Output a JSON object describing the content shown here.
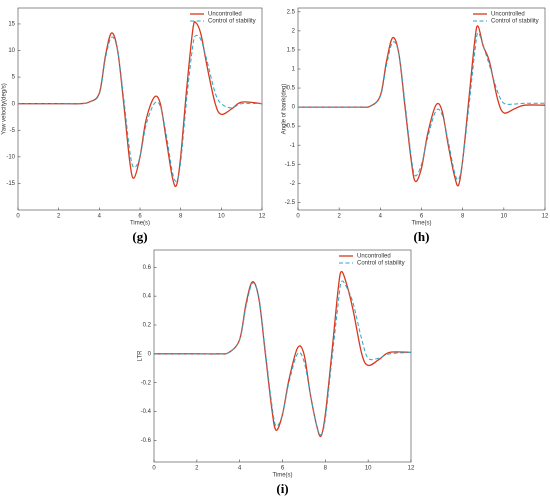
{
  "chart_data": [
    {
      "type": "line",
      "caption": "(g)",
      "xlabel": "Time(s)",
      "ylabel": "Yaw velocity(deg/s)",
      "x": [
        0,
        2,
        3,
        3.5,
        4,
        4.3,
        4.6,
        4.9,
        5.2,
        5.5,
        5.7,
        6,
        6.3,
        6.7,
        7,
        7.3,
        7.6,
        7.8,
        8,
        8.3,
        8.6,
        8.75,
        9,
        9.3,
        9.7,
        10,
        10.5,
        11,
        12
      ],
      "series": [
        {
          "name": "Uncontrolled",
          "color": "#d9381e",
          "dashed": false,
          "values": [
            0,
            0,
            0,
            0.3,
            2,
            9,
            13.3,
            10,
            0,
            -11,
            -14,
            -10,
            -3,
            1.2,
            0,
            -7,
            -14,
            -15.3,
            -10,
            3,
            14,
            15.2,
            13,
            7,
            0,
            -2,
            -1,
            0.3,
            0
          ]
        },
        {
          "name": "Control of stability",
          "color": "#2aa6c8",
          "dashed": true,
          "values": [
            0,
            0,
            0,
            0.3,
            1.8,
            8.5,
            12.5,
            10,
            1,
            -9,
            -12,
            -10,
            -4,
            0,
            -0.5,
            -6,
            -13,
            -14.5,
            -11,
            1,
            11,
            12.8,
            12,
            8,
            2,
            0,
            -0.8,
            0,
            0
          ]
        }
      ],
      "xlim": [
        0,
        12
      ],
      "xticks": [
        0,
        2,
        4,
        6,
        8,
        10,
        12
      ],
      "ylim": [
        -20,
        18
      ],
      "yticks": [
        -15,
        -10,
        -5,
        0,
        5,
        10,
        15
      ],
      "legend": "upper right"
    },
    {
      "type": "line",
      "caption": "(h)",
      "xlabel": "Time(s)",
      "ylabel": "Angle of bank(deg)",
      "x": [
        0,
        2,
        3,
        3.5,
        4,
        4.3,
        4.6,
        4.9,
        5.2,
        5.5,
        5.7,
        6,
        6.3,
        6.7,
        7,
        7.3,
        7.6,
        7.8,
        8,
        8.3,
        8.6,
        8.75,
        9,
        9.3,
        9.7,
        10,
        10.5,
        11,
        12
      ],
      "series": [
        {
          "name": "Uncontrolled",
          "color": "#d9381e",
          "dashed": false,
          "values": [
            0,
            0,
            0,
            0.02,
            0.3,
            1.2,
            1.82,
            1.4,
            0,
            -1.4,
            -1.95,
            -1.6,
            -0.7,
            0.05,
            -0.1,
            -1,
            -1.8,
            -2.05,
            -1.4,
            0.2,
            1.8,
            2.12,
            1.6,
            1.2,
            0.2,
            -0.15,
            -0.05,
            0.05,
            0.05
          ]
        },
        {
          "name": "Control of stability",
          "color": "#2aa6c8",
          "dashed": true,
          "values": [
            0,
            0,
            0,
            0.02,
            0.28,
            1.1,
            1.7,
            1.4,
            0.1,
            -1.3,
            -1.8,
            -1.5,
            -0.8,
            -0.1,
            -0.2,
            -0.9,
            -1.7,
            -1.9,
            -1.4,
            0,
            1.5,
            1.95,
            1.6,
            1.1,
            0.4,
            0.1,
            0.08,
            0.1,
            0.1
          ]
        }
      ],
      "xlim": [
        0,
        12
      ],
      "xticks": [
        0,
        2,
        4,
        6,
        8,
        10,
        12
      ],
      "ylim": [
        -2.7,
        2.6
      ],
      "yticks": [
        -2.5,
        -2,
        -1.5,
        -1,
        -0.5,
        0,
        0.5,
        1,
        1.5,
        2,
        2.5
      ],
      "legend": "upper right"
    },
    {
      "type": "line",
      "caption": "(i)",
      "xlabel": "Time(s)",
      "ylabel": "LTR",
      "x": [
        0,
        2,
        3,
        3.5,
        4,
        4.3,
        4.6,
        4.9,
        5.2,
        5.5,
        5.7,
        6,
        6.3,
        6.7,
        7,
        7.3,
        7.6,
        7.8,
        8,
        8.3,
        8.6,
        8.75,
        9,
        9.3,
        9.7,
        10,
        10.5,
        11,
        12
      ],
      "series": [
        {
          "name": "Uncontrolled",
          "color": "#d9381e",
          "dashed": false,
          "values": [
            0,
            0,
            0,
            0.01,
            0.1,
            0.35,
            0.5,
            0.38,
            0,
            -0.38,
            -0.53,
            -0.42,
            -0.18,
            0.04,
            0,
            -0.28,
            -0.5,
            -0.57,
            -0.42,
            0,
            0.45,
            0.57,
            0.48,
            0.3,
            0,
            -0.08,
            -0.04,
            0.01,
            0.01
          ]
        },
        {
          "name": "Control of stability",
          "color": "#2aa6c8",
          "dashed": true,
          "values": [
            0,
            0,
            0,
            0.01,
            0.1,
            0.33,
            0.49,
            0.39,
            0.02,
            -0.35,
            -0.5,
            -0.42,
            -0.2,
            0,
            -0.05,
            -0.28,
            -0.5,
            -0.56,
            -0.45,
            -0.05,
            0.35,
            0.5,
            0.46,
            0.35,
            0.1,
            -0.03,
            -0.03,
            0,
            0.01
          ]
        }
      ],
      "xlim": [
        0,
        12
      ],
      "xticks": [
        0,
        2,
        4,
        6,
        8,
        10,
        12
      ],
      "ylim": [
        -0.75,
        0.72
      ],
      "yticks": [
        -0.6,
        -0.4,
        -0.2,
        0,
        0.2,
        0.4,
        0.6
      ],
      "legend": "upper right"
    }
  ]
}
